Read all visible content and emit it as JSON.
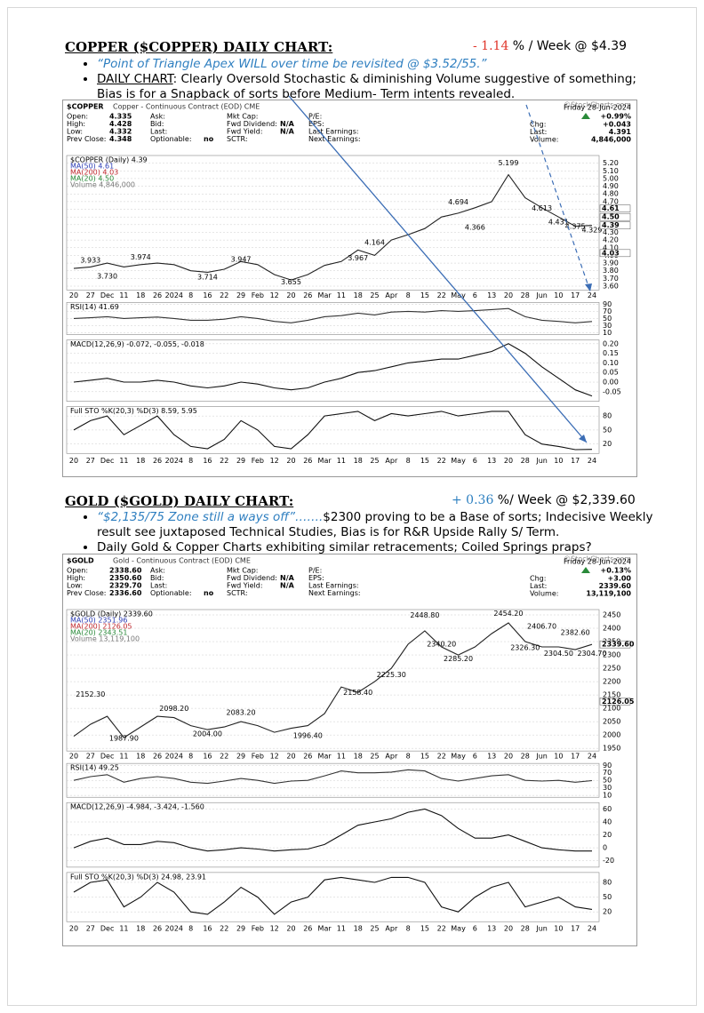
{
  "sections": [
    {
      "heading": "COPPER ($COPPER) DAILY CHART:",
      "change": "- 1.14",
      "change_rest": " % / Week @ $4.39",
      "bullets": [
        {
          "quote": "“Point of Triangle Apex WILL over time be revisited @ $3.52/55.”"
        },
        {
          "lead": "DAILY CHART",
          "text": ": Clearly Oversold Stochastic & diminishing Volume suggestive of something; Bias is for a Snapback of sorts before Medium- Term intents revealed."
        }
      ]
    },
    {
      "heading": "GOLD ($GOLD) DAILY CHART:",
      "change": "+ 0.36",
      "change_rest": " %/ Week @ $2,339.60",
      "bullets": [
        {
          "quote": "“$2,135/75 Zone still a ways off”",
          "dots": "…….",
          "text": "$2300 proving to be a Base of sorts; Indecisive Weekly result see juxtaposed Technical Studies, Bias is for R&R Upside Rally S/ Term."
        },
        {
          "text": "Daily Gold & Copper Charts exhibiting similar retracements; Coiled Springs praps?"
        }
      ]
    }
  ],
  "chart_data": [
    {
      "type": "line",
      "symbol": "$COPPER",
      "title": "Copper - Continuous Contract (EOD) CME",
      "watermark": "©StockCharts.com",
      "stats": [
        [
          [
            "Open:",
            "4.335"
          ],
          [
            "High:",
            "4.428"
          ],
          [
            "Low:",
            "4.332"
          ],
          [
            "Prev Close:",
            "4.348"
          ]
        ],
        [
          [
            "Ask:"
          ],
          [
            "Bid:"
          ],
          [
            "Last:"
          ],
          [
            "Optionable:",
            "no"
          ]
        ],
        [
          [
            "Mkt Cap:"
          ],
          [
            "Fwd Dividend:",
            "N/A"
          ],
          [
            "Fwd Yield:",
            "N/A"
          ],
          [
            "SCTR:"
          ]
        ],
        [
          [
            "P/E:"
          ],
          [
            "EPS:"
          ],
          [
            "Last Earnings:"
          ],
          [
            "Next Earnings:"
          ]
        ]
      ],
      "date": "Friday 28-Jun-2024",
      "pct_change": "+0.99%",
      "quote": [
        [
          "Chg:",
          "+0.043"
        ],
        [
          "Last:",
          "4.391"
        ],
        [
          "Volume:",
          "4,846,000"
        ]
      ],
      "legend": [
        "$COPPER (Daily) 4.39",
        "MA(50) 4.61",
        "MA(200) 4.03",
        "MA(20) 4.50",
        "Volume 4,846,000"
      ],
      "categories": [
        "20",
        "27",
        "Dec",
        "11",
        "18",
        "26",
        "2024",
        "8",
        "16",
        "22",
        "29",
        "Feb",
        "12",
        "20",
        "26",
        "Mar",
        "11",
        "18",
        "25",
        "Apr",
        "8",
        "15",
        "22",
        "May",
        "6",
        "13",
        "20",
        "28",
        "Jun",
        "10",
        "17",
        "24"
      ],
      "values": [
        3.83,
        3.85,
        3.9,
        3.85,
        3.88,
        3.9,
        3.88,
        3.8,
        3.78,
        3.82,
        3.92,
        3.88,
        3.75,
        3.68,
        3.75,
        3.87,
        3.92,
        4.07,
        4.0,
        4.2,
        4.27,
        4.35,
        4.5,
        4.55,
        4.62,
        4.7,
        5.05,
        4.75,
        4.62,
        4.5,
        4.38,
        4.39
      ],
      "color": "#222222",
      "ylim": [
        3.55,
        5.3
      ],
      "yticks": [
        {
          "value": 3.6,
          "label": "3.60"
        },
        {
          "value": 3.7,
          "label": "3.70"
        },
        {
          "value": 3.8,
          "label": "3.80"
        },
        {
          "value": 3.9,
          "label": "3.90"
        },
        {
          "value": 4.0,
          "label": "4.00"
        },
        {
          "value": 4.1,
          "label": "4.10"
        },
        {
          "value": 4.2,
          "label": "4.20"
        },
        {
          "value": 4.3,
          "label": "4.30"
        },
        {
          "value": 4.4,
          "label": "4.40"
        },
        {
          "value": 4.5,
          "label": "4.50"
        },
        {
          "value": 4.6,
          "label": "4.60"
        },
        {
          "value": 4.7,
          "label": "4.70"
        },
        {
          "value": 4.8,
          "label": "4.80"
        },
        {
          "value": 4.9,
          "label": "4.90"
        },
        {
          "value": 5.0,
          "label": "5.00"
        },
        {
          "value": 5.1,
          "label": "5.10"
        },
        {
          "value": 5.2,
          "label": "5.20"
        }
      ],
      "annotations": [
        "5.199",
        "4.694",
        "4.366",
        "4.164",
        "3.974",
        "3.933",
        "3.947",
        "3.730",
        "3.714",
        "3.655",
        "3.967",
        "4.613",
        "4.431",
        "4.375",
        "4.329"
      ],
      "price_tags": [
        "4.61",
        "4.50",
        "4.39",
        "4.03"
      ],
      "rsi": {
        "label": "RSI(14) 41.69",
        "values": [
          50,
          52,
          55,
          50,
          52,
          54,
          50,
          45,
          45,
          48,
          55,
          50,
          42,
          38,
          45,
          55,
          58,
          65,
          60,
          68,
          70,
          68,
          72,
          70,
          72,
          75,
          78,
          55,
          45,
          42,
          38,
          41.69
        ],
        "ylim": [
          5,
          95
        ],
        "yticks": [
          10,
          30,
          50,
          70,
          90
        ]
      },
      "macd": {
        "label": "MACD(12,26,9) -0.072, -0.055, -0.018",
        "values": [
          0,
          0.01,
          0.02,
          0,
          0,
          0.01,
          0,
          -0.02,
          -0.03,
          -0.02,
          0,
          -0.01,
          -0.03,
          -0.04,
          -0.03,
          0,
          0.02,
          0.05,
          0.06,
          0.08,
          0.1,
          0.11,
          0.12,
          0.12,
          0.14,
          0.16,
          0.2,
          0.15,
          0.08,
          0.02,
          -0.04,
          -0.072
        ],
        "ylim": [
          -0.1,
          0.22
        ],
        "yticks": [
          {
            "value": -0.05,
            "label": "-0.05"
          },
          {
            "value": 0,
            "label": "0.00"
          },
          {
            "value": 0.05,
            "label": "0.05"
          },
          {
            "value": 0.1,
            "label": "0.10"
          },
          {
            "value": 0.15,
            "label": "0.15"
          },
          {
            "value": 0.2,
            "label": "0.20"
          }
        ]
      },
      "sto": {
        "label": "Full STO %K(20,3) %D(3) 8.59, 5.95",
        "values": [
          50,
          70,
          80,
          40,
          60,
          80,
          40,
          15,
          10,
          30,
          70,
          50,
          15,
          10,
          40,
          80,
          85,
          90,
          70,
          85,
          80,
          85,
          90,
          80,
          85,
          90,
          90,
          40,
          20,
          15,
          8,
          8.59
        ],
        "ylim": [
          0,
          100
        ],
        "yticks": [
          20,
          50,
          80
        ]
      }
    },
    {
      "type": "line",
      "symbol": "$GOLD",
      "title": "Gold - Continuous Contract (EOD) CME",
      "watermark": "©StockCharts.com",
      "stats": [
        [
          [
            "Open:",
            "2338.60"
          ],
          [
            "High:",
            "2350.60"
          ],
          [
            "Low:",
            "2329.70"
          ],
          [
            "Prev Close:",
            "2336.60"
          ]
        ],
        [
          [
            "Ask:"
          ],
          [
            "Bid:"
          ],
          [
            "Last:"
          ],
          [
            "Optionable:",
            "no"
          ]
        ],
        [
          [
            "Mkt Cap:"
          ],
          [
            "Fwd Dividend:",
            "N/A"
          ],
          [
            "Fwd Yield:",
            "N/A"
          ],
          [
            "SCTR:"
          ]
        ],
        [
          [
            "P/E:"
          ],
          [
            "EPS:"
          ],
          [
            "Last Earnings:"
          ],
          [
            "Next Earnings:"
          ]
        ]
      ],
      "date": "Friday 28-Jun-2024",
      "pct_change": "+0.13%",
      "quote": [
        [
          "Chg:",
          "+3.00"
        ],
        [
          "Last:",
          "2339.60"
        ],
        [
          "Volume:",
          "13,119,100"
        ]
      ],
      "legend": [
        "$GOLD (Daily) 2339.60",
        "MA(50) 2351.96",
        "MA(200) 2126.05",
        "MA(20) 2343.51",
        "Volume 13,119,100"
      ],
      "categories": [
        "20",
        "27",
        "Dec",
        "11",
        "18",
        "26",
        "2024",
        "8",
        "16",
        "22",
        "29",
        "Feb",
        "12",
        "20",
        "26",
        "Mar",
        "11",
        "18",
        "25",
        "Apr",
        "8",
        "15",
        "22",
        "May",
        "6",
        "13",
        "20",
        "28",
        "Jun",
        "10",
        "17",
        "24"
      ],
      "values": [
        1995,
        2040,
        2070,
        1990,
        2030,
        2070,
        2065,
        2035,
        2020,
        2030,
        2050,
        2035,
        2010,
        2025,
        2035,
        2080,
        2180,
        2160,
        2200,
        2250,
        2340,
        2390,
        2330,
        2300,
        2330,
        2380,
        2420,
        2350,
        2330,
        2330,
        2320,
        2339.6
      ],
      "color": "#222222",
      "ylim": [
        1940,
        2470
      ],
      "yticks": [
        1950,
        2000,
        2050,
        2100,
        2150,
        2200,
        2250,
        2300,
        2350,
        2400,
        2450
      ],
      "annotations": [
        "2448.80",
        "2454.20",
        "2406.70",
        "2382.60",
        "2340.20",
        "2285.20",
        "2326.30",
        "2304.50",
        "2304.70",
        "2225.30",
        "2158.40",
        "2152.30",
        "2098.20",
        "2083.20",
        "1987.90",
        "2004.00",
        "1996.40"
      ],
      "price_tags": [
        "2339.60",
        "2126.05"
      ],
      "rsi": {
        "label": "RSI(14) 49.25",
        "values": [
          50,
          60,
          65,
          45,
          55,
          60,
          55,
          45,
          42,
          48,
          55,
          50,
          42,
          48,
          50,
          62,
          75,
          70,
          70,
          72,
          78,
          75,
          55,
          48,
          55,
          62,
          65,
          50,
          48,
          50,
          45,
          49.25
        ],
        "ylim": [
          5,
          95
        ],
        "yticks": [
          10,
          30,
          50,
          70,
          90
        ]
      },
      "macd": {
        "label": "MACD(12,26,9) -4.984, -3.424, -1.560",
        "values": [
          0,
          10,
          15,
          5,
          5,
          10,
          8,
          0,
          -5,
          -3,
          0,
          -2,
          -5,
          -3,
          -2,
          5,
          20,
          35,
          40,
          45,
          55,
          60,
          50,
          30,
          15,
          15,
          20,
          10,
          0,
          -3,
          -5,
          -4.984
        ],
        "ylim": [
          -30,
          70
        ],
        "yticks": [
          -20,
          0,
          20,
          40,
          60
        ]
      },
      "sto": {
        "label": "Full STO %K(20,3) %D(3) 24.98, 23.91",
        "values": [
          60,
          80,
          85,
          30,
          50,
          80,
          60,
          20,
          15,
          40,
          70,
          50,
          15,
          40,
          50,
          85,
          90,
          85,
          80,
          90,
          90,
          80,
          30,
          20,
          50,
          70,
          80,
          30,
          40,
          50,
          30,
          24.98
        ],
        "ylim": [
          0,
          100
        ],
        "yticks": [
          20,
          50,
          80
        ]
      }
    }
  ]
}
